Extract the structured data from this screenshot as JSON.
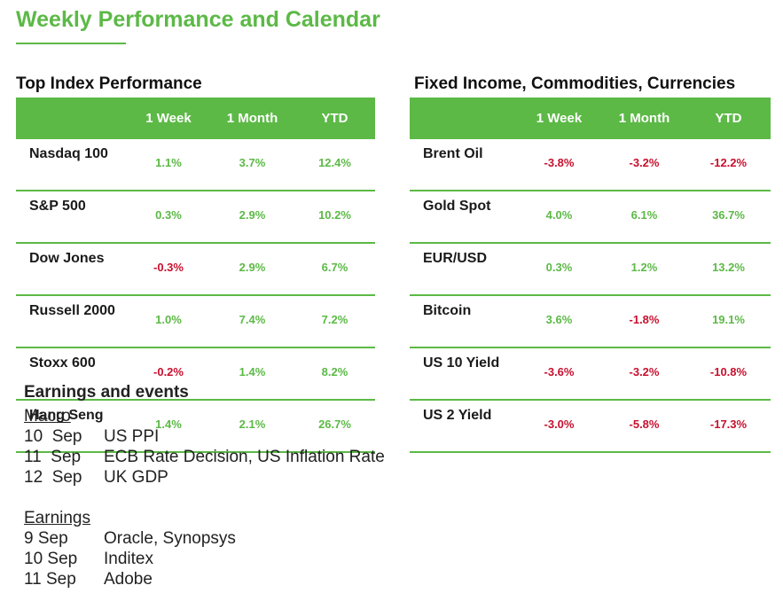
{
  "page": {
    "title": "Weekly Performance and Calendar"
  },
  "colors": {
    "accent": "#5cb946",
    "positive": "#5cb946",
    "negative": "#c8102e"
  },
  "index_table": {
    "title": "Top Index Performance",
    "columns": [
      "",
      "1 Week",
      "1 Month",
      "YTD"
    ],
    "rows": [
      {
        "name": "Nasdaq 100",
        "week": "1.1%",
        "month": "3.7%",
        "ytd": "12.4%"
      },
      {
        "name": "S&P 500",
        "week": "0.3%",
        "month": "2.9%",
        "ytd": "10.2%"
      },
      {
        "name": "Dow Jones",
        "week": "-0.3%",
        "month": "2.9%",
        "ytd": "6.7%"
      },
      {
        "name": "Russell 2000",
        "week": "1.0%",
        "month": "7.4%",
        "ytd": "7.2%"
      },
      {
        "name": "Stoxx 600",
        "week": "-0.2%",
        "month": "1.4%",
        "ytd": "8.2%"
      },
      {
        "name": "Hang Seng",
        "week": "1.4%",
        "month": "2.1%",
        "ytd": "26.7%"
      }
    ]
  },
  "fixed_income_table": {
    "title": "Fixed Income, Commodities, Currencies",
    "columns": [
      "",
      "1 Week",
      "1 Month",
      "YTD"
    ],
    "rows": [
      {
        "name": "Brent Oil",
        "week": "-3.8%",
        "month": "-3.2%",
        "ytd": "-12.2%"
      },
      {
        "name": "Gold Spot",
        "week": "4.0%",
        "month": "6.1%",
        "ytd": "36.7%"
      },
      {
        "name": "EUR/USD",
        "week": "0.3%",
        "month": "1.2%",
        "ytd": "13.2%"
      },
      {
        "name": "Bitcoin",
        "week": "3.6%",
        "month": "-1.8%",
        "ytd": "19.1%"
      },
      {
        "name": "US 10 Yield",
        "week": "-3.6%",
        "month": "-3.2%",
        "ytd": "-10.8%"
      },
      {
        "name": "US 2 Yield",
        "week": "-3.0%",
        "month": "-5.8%",
        "ytd": "-17.3%"
      }
    ]
  },
  "events": {
    "title": "Earnings and events",
    "macro_label": "Macro",
    "macro": [
      {
        "date": "10  Sep",
        "event": "US PPI"
      },
      {
        "date": "11  Sep",
        "event": "ECB Rate Decision, US Inflation Rate"
      },
      {
        "date": "12  Sep",
        "event": "UK GDP"
      }
    ],
    "earnings_label": "Earnings",
    "earnings": [
      {
        "date": "9 Sep",
        "event": "Oracle, Synopsys"
      },
      {
        "date": "10 Sep",
        "event": "Inditex"
      },
      {
        "date": "11 Sep",
        "event": "Adobe"
      }
    ]
  }
}
